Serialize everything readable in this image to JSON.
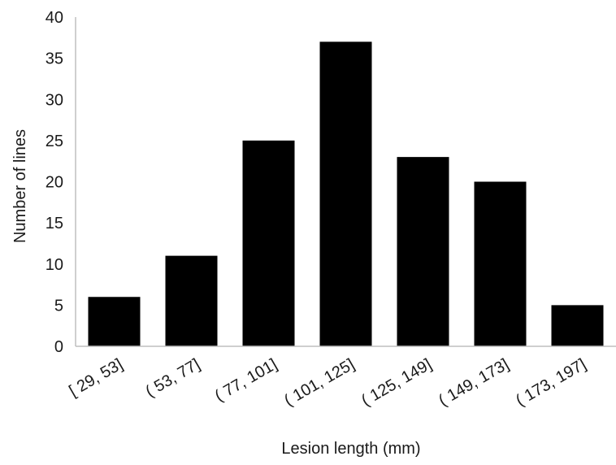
{
  "chart_data": {
    "type": "bar",
    "categories": [
      "[ 29,  53]",
      "( 53,  77]",
      "( 77,  101]",
      "( 101,  125]",
      "( 125,  149]",
      "( 149,  173]",
      "( 173,  197]"
    ],
    "values": [
      6,
      11,
      25,
      37,
      23,
      20,
      5
    ],
    "title": "",
    "xlabel": "Lesion length  (mm)",
    "ylabel": "Number of lines",
    "ylim": [
      0,
      40
    ],
    "yticks": [
      "0",
      "5",
      "10",
      "15",
      "20",
      "25",
      "30",
      "35",
      "40"
    ],
    "grid": false,
    "bar_color": "#000000"
  }
}
